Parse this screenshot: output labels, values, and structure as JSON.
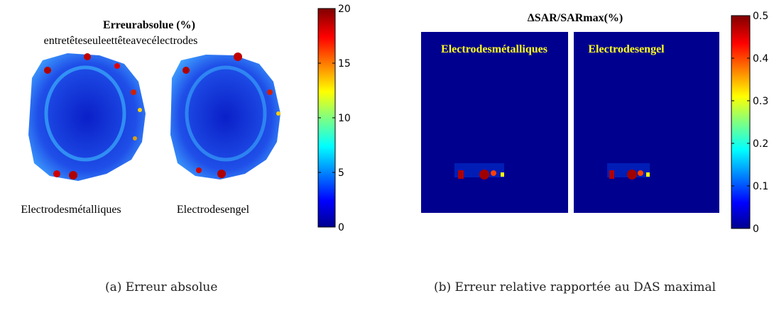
{
  "panels": [
    {
      "title": "Erreurabsolue (%)",
      "subtitle": "entretêteseuleettêteavecélectrodes",
      "image_labels": [
        "Electrodesmétalliques",
        "Electrodesengel"
      ],
      "colorbar": {
        "lim": [
          0,
          20
        ],
        "ticks": [
          0,
          5,
          10,
          15,
          20
        ]
      },
      "caption": "(a) Erreur absolue"
    },
    {
      "title": "ΔSAR/SARmax(%)",
      "image_labels": [
        "Electrodesmétalliques",
        "Electrodesengel"
      ],
      "colorbar": {
        "lim": [
          0,
          0.5
        ],
        "ticks": [
          0,
          0.1,
          0.2,
          0.3,
          0.4,
          0.5
        ]
      },
      "caption": "(b) Erreur relative rapportée au DAS maximal"
    }
  ]
}
